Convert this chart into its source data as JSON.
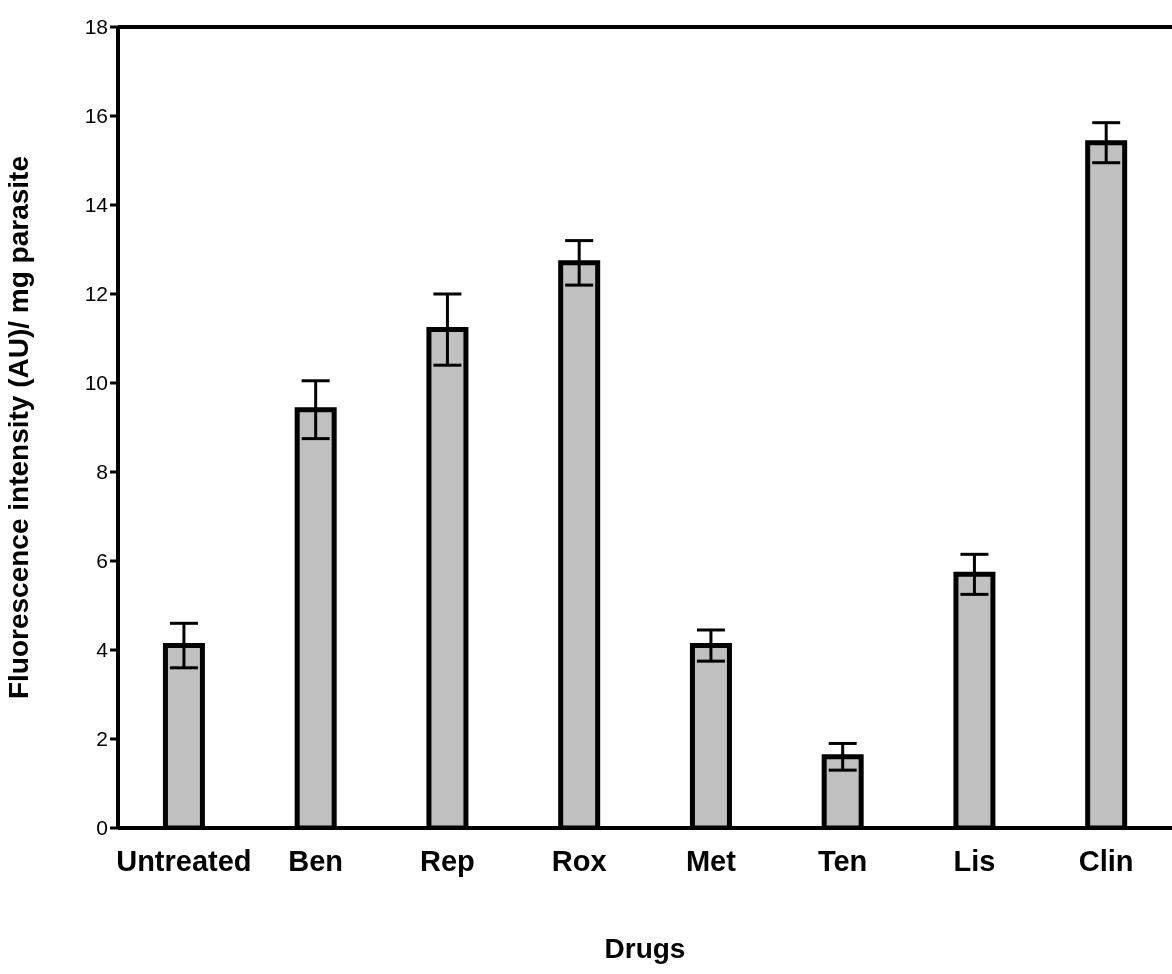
{
  "chart_data": {
    "type": "bar",
    "xlabel": "Drugs",
    "ylabel": "Fluorescence intensity (AU)/ mg parasite",
    "categories": [
      "Untreated",
      "Ben",
      "Rep",
      "Rox",
      "Met",
      "Ten",
      "Lis",
      "Clin"
    ],
    "values": [
      4.1,
      9.4,
      11.2,
      12.7,
      4.1,
      1.6,
      5.7,
      15.4
    ],
    "errors": [
      0.5,
      0.65,
      0.8,
      0.5,
      0.35,
      0.3,
      0.45,
      0.45
    ],
    "color": "#c0c0c0",
    "ylim": [
      0,
      18
    ],
    "yticks": [
      0,
      2,
      4,
      6,
      8,
      10,
      12,
      14,
      16,
      18
    ]
  }
}
